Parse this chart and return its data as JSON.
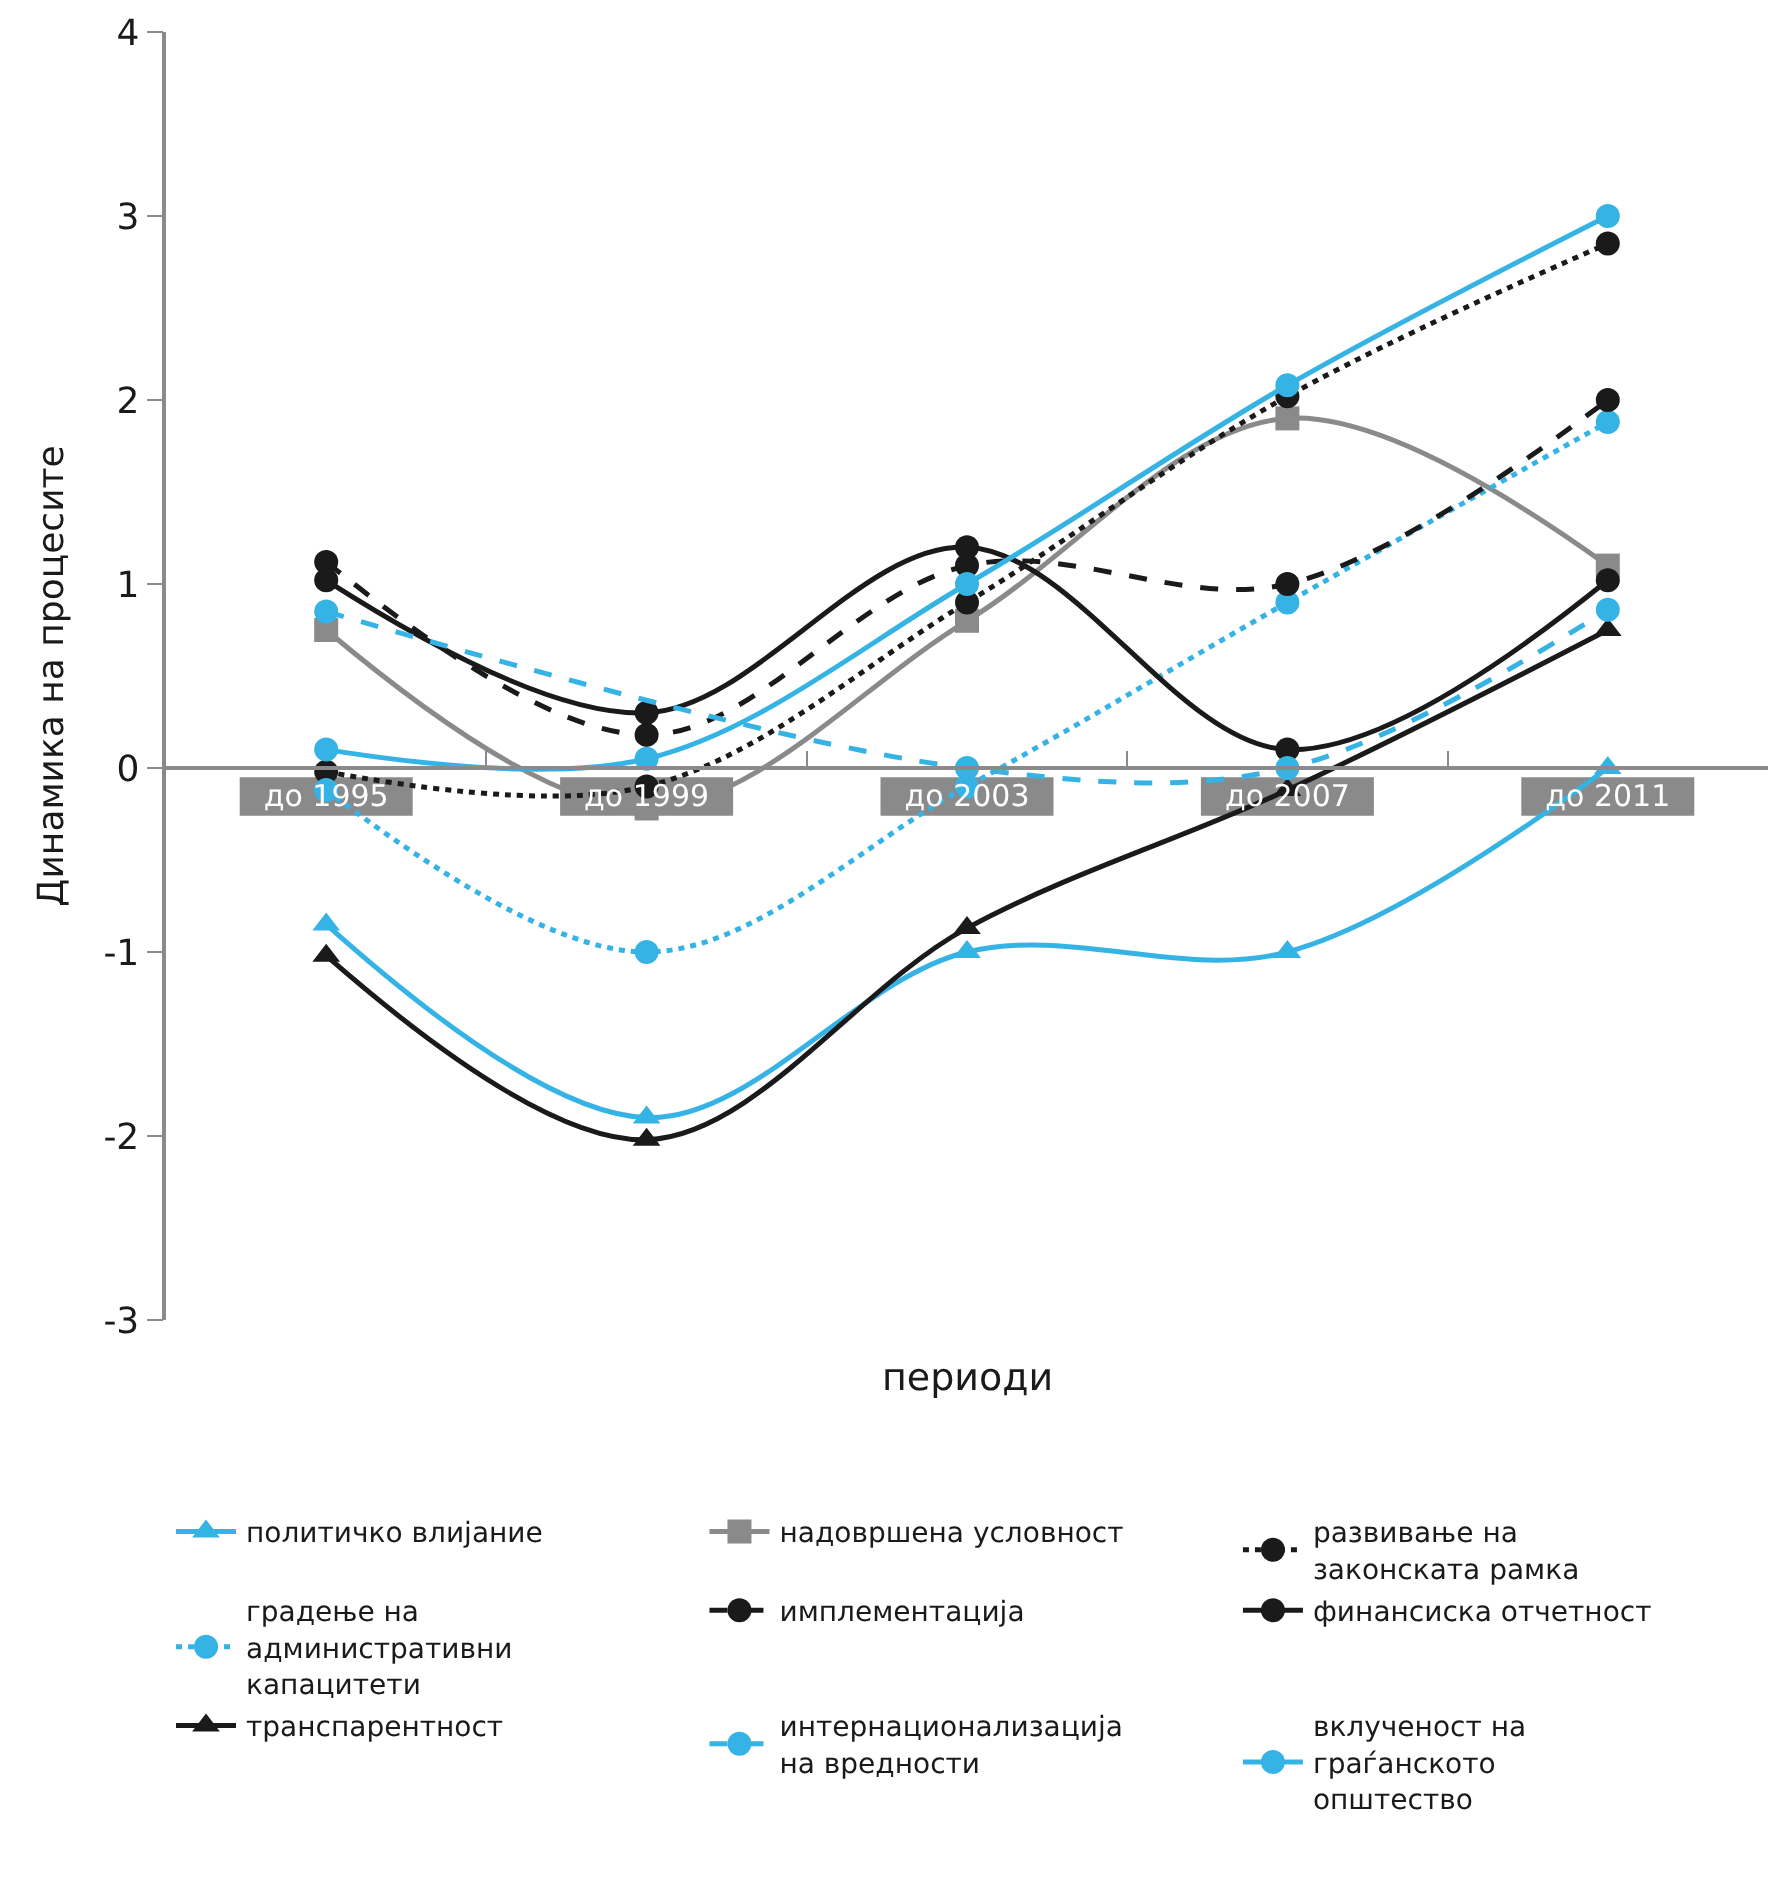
{
  "chart_data": {
    "type": "line",
    "xlabel": "периоди",
    "ylabel": "Динамика на процесите",
    "categories": [
      "до 1995",
      "до 1999",
      "до 2003",
      "до 2007",
      "до 2011"
    ],
    "ylim": [
      -3,
      4
    ],
    "yticks": [
      -3,
      -2,
      -1,
      0,
      1,
      2,
      3,
      4
    ],
    "grid": false,
    "legend": "bottom",
    "series": [
      {
        "name": "политичко влијание",
        "color": "#35b3e5",
        "marker": "triangle",
        "line_style": "solid",
        "values": [
          -0.85,
          -1.9,
          -1.0,
          -1.0,
          0
        ]
      },
      {
        "name": "надовршена условност",
        "color": "#8a8a8a",
        "marker": "square",
        "line_style": "solid",
        "values": [
          0.75,
          -0.22,
          0.8,
          1.9,
          1.1
        ]
      },
      {
        "name": "развивање на законската рамка",
        "color": "#1a1a1a",
        "marker": "circle",
        "line_style": "dotted",
        "values": [
          -0.02,
          -0.1,
          0.9,
          2.02,
          2.85
        ]
      },
      {
        "name": "градење на административни капацитети",
        "color": "#35b3e5",
        "marker": "circle",
        "line_style": "dotted",
        "values": [
          -0.12,
          -1.0,
          -0.1,
          0.9,
          1.88
        ]
      },
      {
        "name": "имплементација",
        "color": "#1a1a1a",
        "marker": "circle",
        "line_style": "dashed",
        "values": [
          1.12,
          0.18,
          1.1,
          1.0,
          2.0
        ]
      },
      {
        "name": "финансиска отчетност",
        "color": "#1a1a1a",
        "marker": "circle",
        "line_style": "solid",
        "values": [
          1.02,
          0.3,
          1.2,
          0.1,
          1.02
        ]
      },
      {
        "name": "транспарентност",
        "color": "#1a1a1a",
        "marker": "triangle",
        "line_style": "solid",
        "values": [
          -1.02,
          -2.02,
          -0.87,
          -0.12,
          0.75
        ]
      },
      {
        "name": "интернационализација на вредности",
        "color": "#35b3e5",
        "marker": "circle",
        "line_style": "dashed",
        "values": [
          0.85,
          null,
          0.0,
          0.0,
          0.86
        ]
      },
      {
        "name": "вклученост на граѓанското општество",
        "color": "#35b3e5",
        "marker": "circle",
        "line_style": "solid",
        "values": [
          0.1,
          0.05,
          1.0,
          2.08,
          3.0
        ]
      }
    ]
  }
}
